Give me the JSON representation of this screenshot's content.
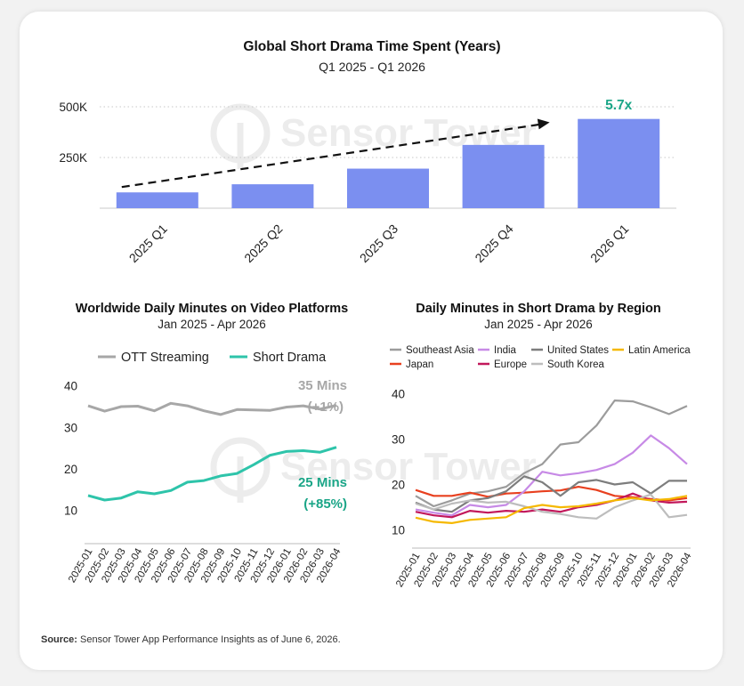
{
  "source": {
    "label": "Source:",
    "text": " Sensor Tower App Performance Insights as of June 6, 2026."
  },
  "watermark": "Sensor Tower",
  "colors": {
    "bar": "#7b8ff0",
    "ott": "#a7a7a7",
    "short_drama": "#2ec4aa",
    "growth": "#1aa587"
  },
  "chart_data": [
    {
      "type": "bar",
      "title": "Global Short Drama Time Spent (Years)",
      "subtitle": "Q1 2025 - Q1 2026",
      "categories": [
        "2025 Q1",
        "2025 Q2",
        "2025 Q3",
        "2025 Q4",
        "2026 Q1"
      ],
      "values": [
        78,
        118,
        195,
        312,
        440
      ],
      "yticks": [
        {
          "v": 250,
          "label": "250K"
        },
        {
          "v": 500,
          "label": "500K"
        }
      ],
      "ylim": [
        0,
        520
      ],
      "grid": true,
      "annotation": "5.7x"
    },
    {
      "type": "line",
      "title": "Worldwide Daily Minutes on Video Platforms",
      "subtitle": "Jan 2025 - Apr 2026",
      "x": [
        "2025-01",
        "2025-02",
        "2025-03",
        "2025-04",
        "2025-05",
        "2025-06",
        "2025-07",
        "2025-08",
        "2025-09",
        "2025-10",
        "2025-11",
        "2025-12",
        "2026-01",
        "2026-02",
        "2026-03",
        "2026-04"
      ],
      "yticks": [
        10,
        20,
        30,
        40
      ],
      "ylim": [
        2,
        44
      ],
      "legend": "top",
      "series": [
        {
          "name": "OTT Streaming",
          "color": "#a7a7a7",
          "values": [
            35.2,
            33.9,
            35.0,
            35.1,
            34.0,
            35.8,
            35.2,
            34.0,
            33.1,
            34.3,
            34.2,
            34.1,
            34.9,
            35.2,
            34.4,
            35.3
          ],
          "end_label": "35 Mins",
          "end_change": "(+1%)"
        },
        {
          "name": "Short Drama",
          "color": "#2ec4aa",
          "values": [
            13.6,
            12.5,
            13.0,
            14.5,
            14.0,
            14.8,
            16.8,
            17.2,
            18.3,
            18.9,
            21.0,
            23.3,
            24.2,
            24.4,
            24.0,
            25.2
          ],
          "end_label": "25 Mins",
          "end_change": "(+85%)"
        }
      ]
    },
    {
      "type": "line",
      "title": "Daily  Minutes in Short Drama by Region",
      "subtitle": "Jan 2025 - Apr 2026",
      "x": [
        "2025-01",
        "2025-02",
        "2025-03",
        "2025-04",
        "2025-05",
        "2025-06",
        "2025-07",
        "2025-08",
        "2025-09",
        "2025-10",
        "2025-11",
        "2025-12",
        "2026-01",
        "2026-02",
        "2026-03",
        "2026-04"
      ],
      "yticks": [
        10,
        20,
        30,
        40
      ],
      "ylim": [
        6,
        44
      ],
      "legend": "top",
      "series": [
        {
          "name": "Southeast Asia",
          "color": "#9c9c9c",
          "values": [
            17.5,
            15.2,
            16.5,
            18.0,
            18.5,
            19.5,
            22.5,
            24.5,
            28.8,
            29.3,
            33.0,
            38.5,
            38.3,
            37.0,
            35.5,
            37.3
          ]
        },
        {
          "name": "Japan",
          "color": "#e8401f",
          "values": [
            18.8,
            17.5,
            17.5,
            18.2,
            17.3,
            18.0,
            18.2,
            18.5,
            18.7,
            19.5,
            18.8,
            17.5,
            17.2,
            16.8,
            16.5,
            17.0
          ]
        },
        {
          "name": "India",
          "color": "#c78ae6",
          "values": [
            14.5,
            13.8,
            13.2,
            15.5,
            15.0,
            15.5,
            18.5,
            22.8,
            22.0,
            22.5,
            23.2,
            24.5,
            27.0,
            30.8,
            28.0,
            24.5
          ]
        },
        {
          "name": "Europe",
          "color": "#c2185b",
          "values": [
            14.0,
            13.2,
            12.8,
            14.2,
            13.8,
            14.2,
            14.0,
            14.5,
            14.0,
            15.0,
            15.5,
            16.5,
            18.0,
            16.5,
            16.0,
            16.2
          ]
        },
        {
          "name": "United States",
          "color": "#7d7d7d",
          "values": [
            16.0,
            14.5,
            14.0,
            16.5,
            17.0,
            18.5,
            21.8,
            20.5,
            17.5,
            20.5,
            21.0,
            20.0,
            20.5,
            18.0,
            20.8,
            20.8
          ]
        },
        {
          "name": "South Korea",
          "color": "#bdbdbd",
          "values": [
            15.8,
            14.5,
            15.8,
            16.5,
            16.0,
            16.2,
            15.2,
            14.0,
            13.5,
            12.8,
            12.5,
            15.0,
            16.5,
            17.8,
            12.8,
            13.3
          ]
        },
        {
          "name": "Latin America",
          "color": "#f5b800",
          "values": [
            12.7,
            11.8,
            11.5,
            12.2,
            12.5,
            12.8,
            14.8,
            15.5,
            15.0,
            15.2,
            15.8,
            16.5,
            17.0,
            16.5,
            16.8,
            17.5
          ]
        }
      ]
    }
  ]
}
